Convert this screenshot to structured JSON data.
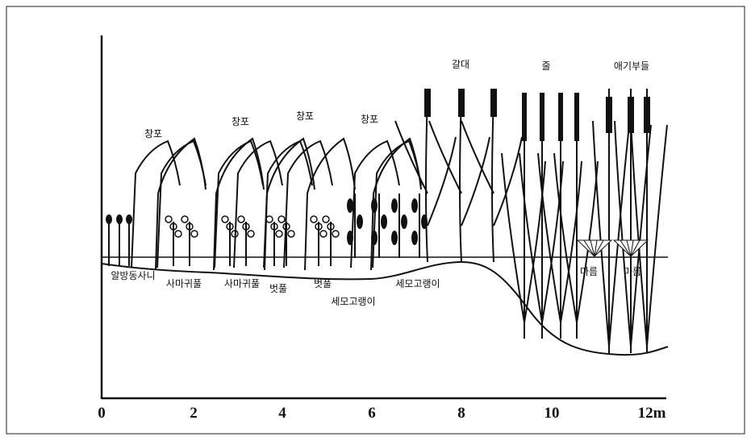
{
  "plant_labels": [
    "창포",
    "창포",
    "창포",
    "창포",
    "갈대",
    "줄",
    "애기부들",
    "알방동사니",
    "사마귀풀",
    "사마귀풀",
    "벗풀",
    "벗풀",
    "세모고랭이",
    "세모고랭이",
    "마름",
    "마름"
  ],
  "axis_labels": [
    "0",
    "2",
    "4",
    "6",
    "8",
    "10",
    "12m"
  ]
}
